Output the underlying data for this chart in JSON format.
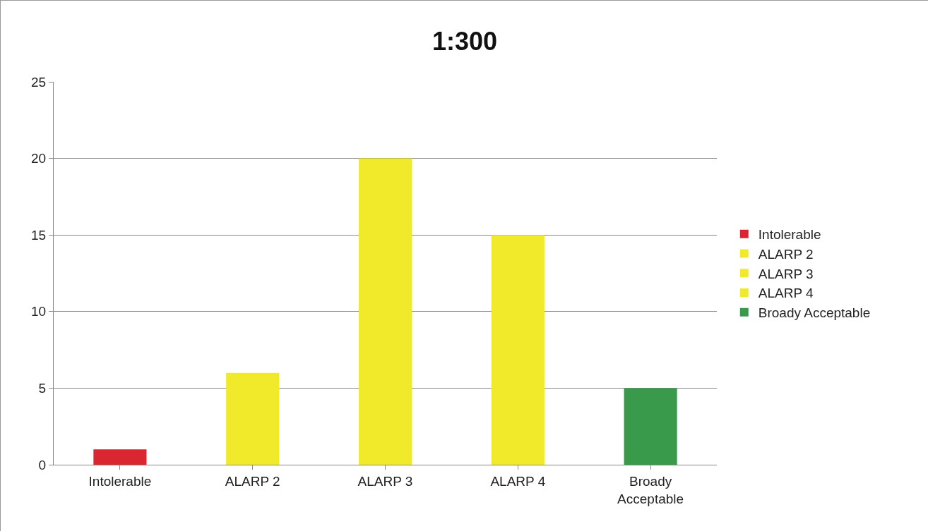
{
  "chart_data": {
    "type": "bar",
    "title": "1:300",
    "categories": [
      "Intolerable",
      "ALARP 2",
      "ALARP 3",
      "ALARP 4",
      "Broady Acceptable"
    ],
    "series": [
      {
        "name": "Intolerable",
        "color": "#d92630",
        "values": [
          1,
          null,
          null,
          null,
          null
        ]
      },
      {
        "name": "ALARP 2",
        "color": "#f0ea2a",
        "values": [
          null,
          6,
          null,
          null,
          null
        ]
      },
      {
        "name": "ALARP 3",
        "color": "#f0ea2a",
        "values": [
          null,
          null,
          20,
          null,
          null
        ]
      },
      {
        "name": "ALARP 4",
        "color": "#f0ea2a",
        "values": [
          null,
          null,
          null,
          15,
          null
        ]
      },
      {
        "name": "Broady Acceptable",
        "color": "#3a9a4c",
        "values": [
          null,
          null,
          null,
          null,
          5
        ]
      }
    ],
    "ylim": [
      0,
      25
    ],
    "yticks": [
      0,
      5,
      10,
      15,
      20,
      25
    ],
    "grid": "y",
    "legend": "right"
  }
}
